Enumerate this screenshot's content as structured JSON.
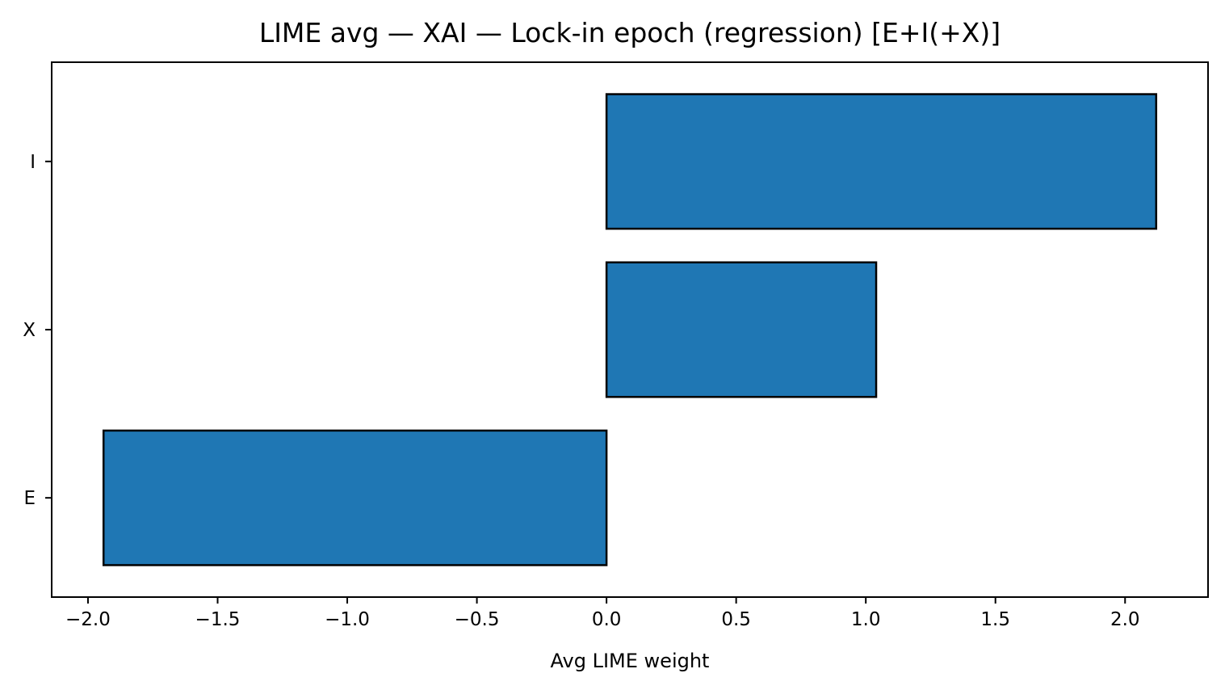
{
  "chart_data": {
    "type": "bar",
    "orientation": "horizontal",
    "title": "LIME avg — XAI — Lock-in epoch (regression) [E+I(+X)]",
    "xlabel": "Avg LIME weight",
    "ylabel": "",
    "categories": [
      "E",
      "X",
      "I"
    ],
    "values": [
      -1.94,
      1.04,
      2.12
    ],
    "xlim": [
      -2.14,
      2.32
    ],
    "xticks": [
      -2.0,
      -1.5,
      -1.0,
      -0.5,
      0.0,
      0.5,
      1.0,
      1.5,
      2.0
    ],
    "xtick_labels": [
      "−2.0",
      "−1.5",
      "−1.0",
      "−0.5",
      "0.0",
      "0.5",
      "1.0",
      "1.5",
      "2.0"
    ],
    "grid": false,
    "bar_color": "#1f77b4",
    "edge_color": "#000000"
  }
}
